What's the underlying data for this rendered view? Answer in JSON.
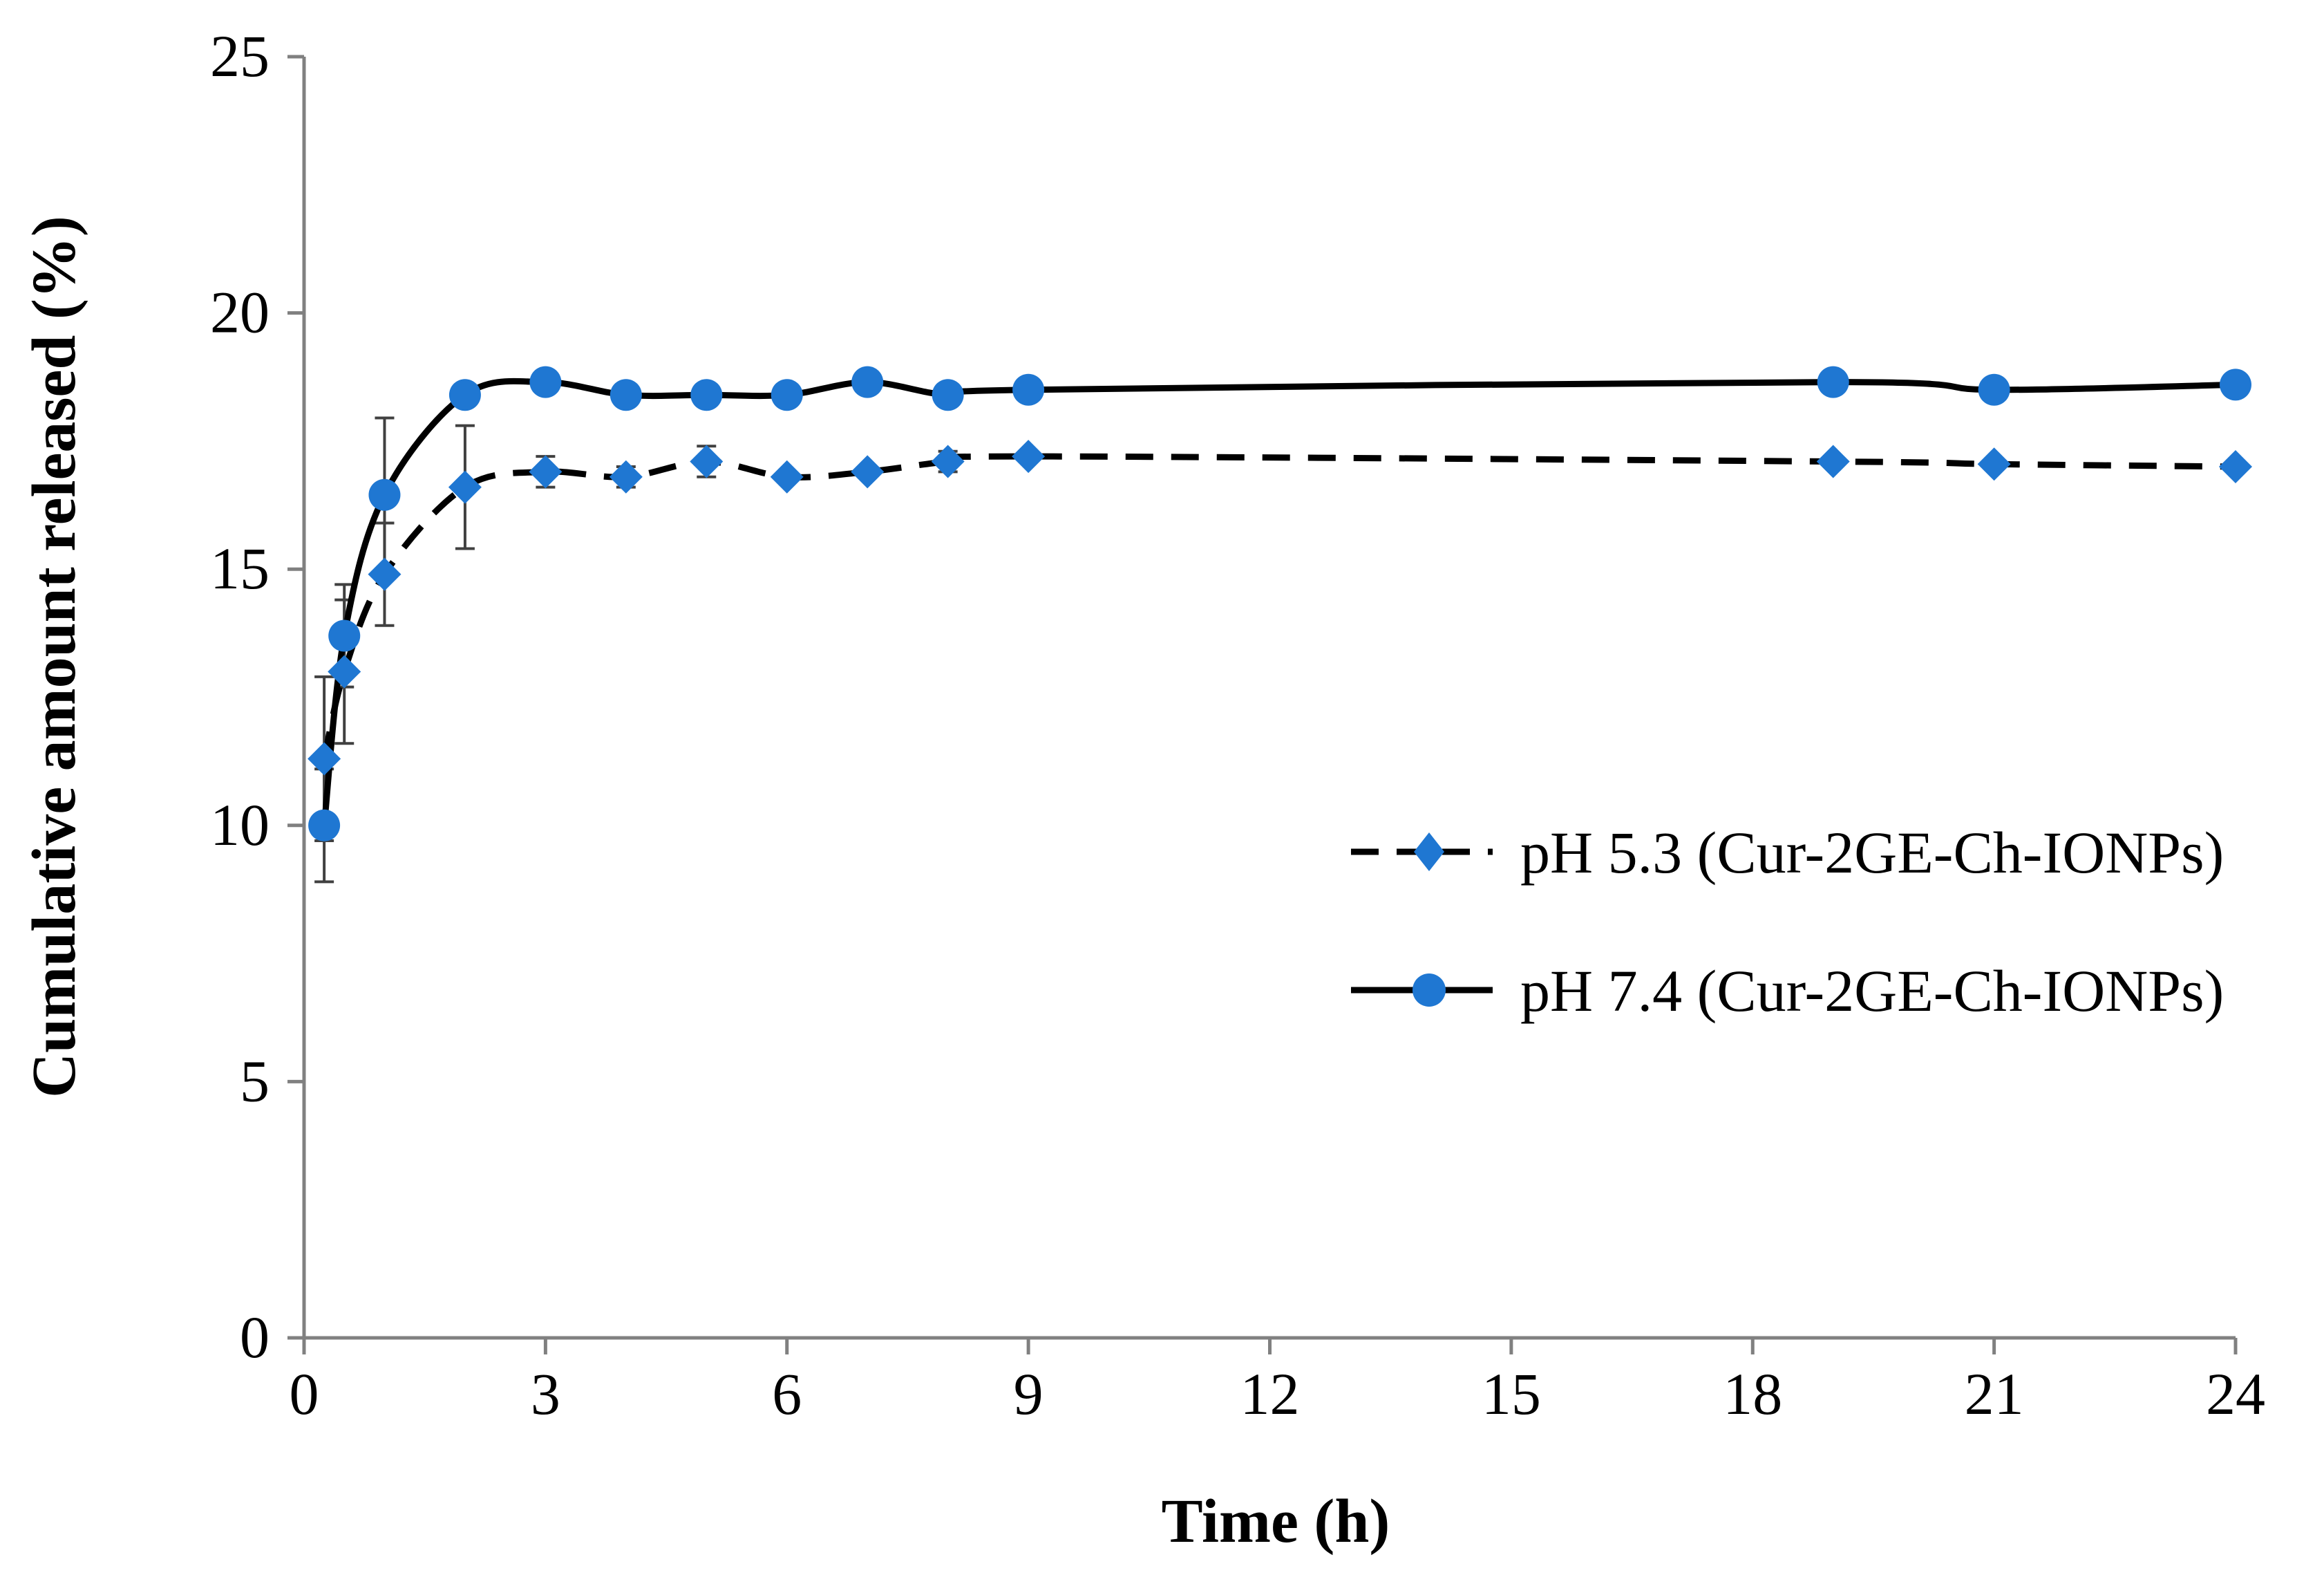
{
  "chart_data": {
    "type": "line",
    "title": "",
    "xlabel": "Time (h)",
    "ylabel": "Cumulative amount released (%)",
    "xlim": [
      0,
      24
    ],
    "ylim": [
      0,
      25
    ],
    "xticks": [
      0,
      3,
      6,
      9,
      12,
      15,
      18,
      21,
      24
    ],
    "yticks": [
      0,
      5,
      10,
      15,
      20,
      25
    ],
    "grid": false,
    "legend_position": "right",
    "series": [
      {
        "name": "pH 5.3 (Cur-2GE-Ch-IONPs)",
        "line_style": "dashed",
        "marker": "diamond",
        "x": [
          0.25,
          0.5,
          1,
          2,
          3,
          4,
          5,
          6,
          7,
          8,
          9,
          19,
          21,
          24
        ],
        "values": [
          11.3,
          13.0,
          14.9,
          16.6,
          16.9,
          16.8,
          17.1,
          16.8,
          16.9,
          17.1,
          17.2,
          17.1,
          17.05,
          17.0
        ],
        "errors": [
          1.6,
          1.4,
          1.0,
          1.2,
          0.3,
          0.2,
          0.3,
          0.1,
          0.1,
          0.2,
          0.1,
          0.1,
          0.1,
          0.1
        ]
      },
      {
        "name": "pH 7.4 (Cur-2GE-Ch-IONPs)",
        "line_style": "solid",
        "marker": "circle",
        "x": [
          0.25,
          0.5,
          1,
          2,
          3,
          4,
          5,
          6,
          7,
          8,
          9,
          19,
          21,
          24
        ],
        "values": [
          10.0,
          13.7,
          16.45,
          18.4,
          18.65,
          18.4,
          18.4,
          18.4,
          18.65,
          18.4,
          18.5,
          18.65,
          18.5,
          18.6
        ],
        "errors": [
          1.1,
          1.0,
          1.5,
          0.1,
          0.1,
          0.1,
          0.1,
          0.1,
          0.1,
          0.1,
          0.1,
          0.1,
          0.1,
          0.1
        ]
      }
    ],
    "colors": {
      "marker": "#1f77d2",
      "line": "#000000",
      "axis": "#808080",
      "error_bar": "#404040"
    }
  }
}
